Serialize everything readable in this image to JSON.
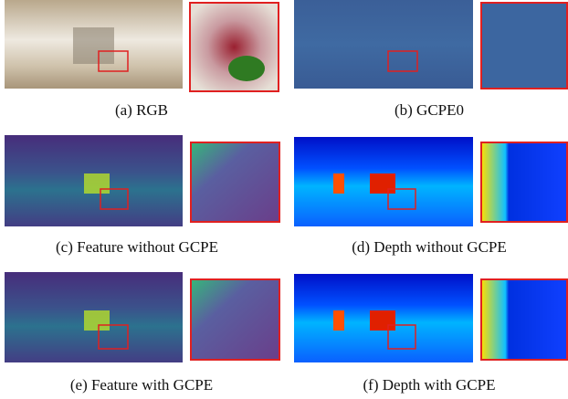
{
  "panels": [
    {
      "caption": "(a) RGB"
    },
    {
      "caption": "(b) GCPE0"
    },
    {
      "caption": "(c) Feature without GCPE"
    },
    {
      "caption": "(d) Depth without GCPE"
    },
    {
      "caption": "(e) Feature with GCPE"
    },
    {
      "caption": "(f) Depth with GCPE"
    }
  ]
}
